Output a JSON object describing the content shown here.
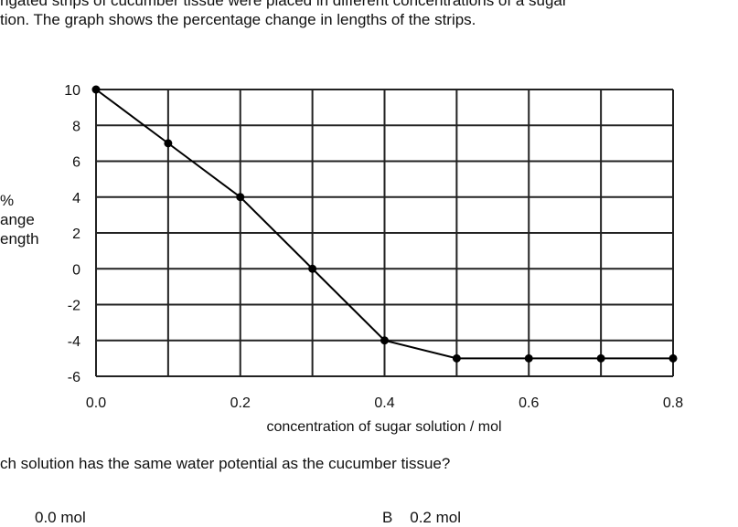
{
  "text": {
    "intro_line1": "ngated strips of cucumber tissue were placed in different concentrations of a sugar",
    "intro_line2": "tion. The graph shows the percentage change in lengths of the strips.",
    "question": "ch solution has the same water potential as the cucumber tissue?",
    "option_a": "0.0 mol",
    "option_b_letter": "B",
    "option_b": "0.2 mol"
  },
  "chart_data": {
    "type": "line",
    "xlabel": "concentration of sugar solution / mol",
    "ylabel_lines": [
      "%",
      "ange",
      "ength"
    ],
    "xlim": [
      0.0,
      0.8
    ],
    "ylim": [
      -6,
      10
    ],
    "xticks": [
      0.0,
      0.2,
      0.4,
      0.6,
      0.8
    ],
    "xtick_labels": [
      "0.0",
      "0.2",
      "0.4",
      "0.6",
      "0.8"
    ],
    "yticks": [
      10,
      8,
      6,
      4,
      2,
      0,
      -2,
      -4,
      -6
    ],
    "ytick_labels": [
      "10",
      "8",
      "6",
      "4",
      "2",
      "0",
      "-2",
      "-4",
      "-6"
    ],
    "x_gridlines": [
      0.0,
      0.1,
      0.2,
      0.3,
      0.4,
      0.5,
      0.6,
      0.7,
      0.8
    ],
    "y_gridlines": [
      10,
      8,
      6,
      4,
      2,
      0,
      -2,
      -4,
      -6
    ],
    "grid": true,
    "series": [
      {
        "x": [
          0.0,
          0.1,
          0.2,
          0.3,
          0.4,
          0.5,
          0.6,
          0.7,
          0.8
        ],
        "y": [
          10,
          7,
          4,
          0,
          -4,
          -5,
          -5,
          -5,
          -5
        ]
      }
    ]
  }
}
